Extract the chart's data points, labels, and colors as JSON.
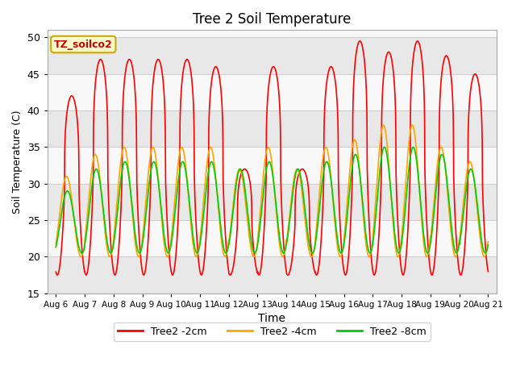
{
  "title": "Tree 2 Soil Temperature",
  "xlabel": "Time",
  "ylabel": "Soil Temperature (C)",
  "ylim": [
    15,
    51
  ],
  "yticks": [
    15,
    20,
    25,
    30,
    35,
    40,
    45,
    50
  ],
  "xtick_labels": [
    "Aug 6",
    "Aug 7",
    "Aug 8",
    "Aug 9",
    "Aug 10",
    "Aug 11",
    "Aug 12",
    "Aug 13",
    "Aug 14",
    "Aug 15",
    "Aug 16",
    "Aug 17",
    "Aug 18",
    "Aug 19",
    "Aug 20",
    "Aug 21"
  ],
  "annotation_text": "TZ_soilco2",
  "annotation_box_facecolor": "#ffffcc",
  "annotation_box_edgecolor": "#ccaa00",
  "grid_color": "#cccccc",
  "band_color_light": "#e8e8e8",
  "band_color_white": "#f8f8f8",
  "series_colors": {
    "Tree2 -2cm": "#ff0000",
    "Tree2 -4cm": "#ffa500",
    "Tree2 -8cm": "#00cc00"
  },
  "linewidth": 1.2,
  "days": 15,
  "peak_heights_2cm": [
    42,
    47,
    47,
    47,
    47,
    46,
    32,
    46,
    32,
    46,
    49.5,
    48,
    49.5,
    47.5,
    45
  ],
  "trough_2cm": 17.5,
  "peak_heights_4cm": [
    31,
    34,
    35,
    35,
    35,
    35,
    32,
    35,
    32,
    35,
    36,
    38,
    38,
    35,
    33
  ],
  "trough_4cm": 20,
  "peak_heights_8cm": [
    29,
    32,
    33,
    33,
    33,
    33,
    32,
    33,
    32,
    33,
    34,
    35,
    35,
    34,
    32
  ],
  "trough_8cm": 20.5
}
